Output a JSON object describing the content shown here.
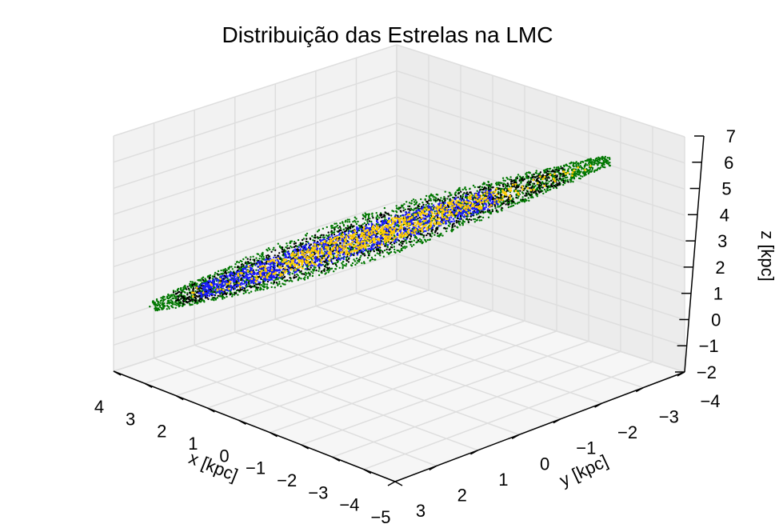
{
  "chart_data": {
    "type": "scatter",
    "projection": "3d",
    "title": "Distribuição das Estrelas na LMC",
    "xlabel": "x [kpc]",
    "ylabel": "y [kpc]",
    "zlabel": "z [kpc]",
    "xlim": [
      -5,
      4
    ],
    "ylim": [
      -4,
      3
    ],
    "zlim": [
      -2,
      7
    ],
    "x_ticks": [
      "4",
      "3",
      "2",
      "1",
      "0",
      "−1",
      "−2",
      "−3",
      "−4",
      "−5"
    ],
    "y_ticks": [
      "3",
      "2",
      "1",
      "0",
      "−1",
      "−2",
      "−3",
      "−4"
    ],
    "z_ticks": [
      "−2",
      "−1",
      "0",
      "1",
      "2",
      "3",
      "4",
      "5",
      "6",
      "7"
    ],
    "grid": true,
    "series_colors": [
      "#007700",
      "#000000",
      "#1a1aff",
      "#ffcc00"
    ],
    "distribution": {
      "shape": "thin inclined disk elongated along a line from the left end to the upper-right end",
      "x_range": [
        -5,
        4
      ],
      "z_range": [
        0.5,
        6.5
      ],
      "core": "dense yellow points concentrated near the centre"
    }
  }
}
